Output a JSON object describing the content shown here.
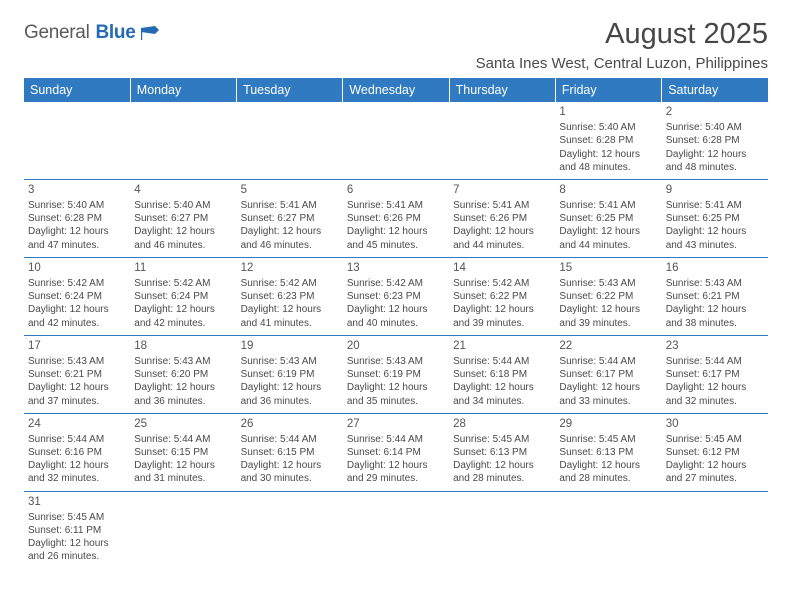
{
  "logo": {
    "part1": "General",
    "part2": "Blue"
  },
  "title": "August 2025",
  "location": "Santa Ines West, Central Luzon, Philippines",
  "colors": {
    "header_bg": "#2f7ac0",
    "header_text": "#ffffff",
    "row_border": "#2f7ac0",
    "body_text": "#4a4a4a",
    "logo_blue": "#246bb3"
  },
  "dayHeaders": [
    "Sunday",
    "Monday",
    "Tuesday",
    "Wednesday",
    "Thursday",
    "Friday",
    "Saturday"
  ],
  "weeks": [
    [
      null,
      null,
      null,
      null,
      null,
      {
        "n": "1",
        "sr": "5:40 AM",
        "ss": "6:28 PM",
        "dl": "12 hours and 48 minutes."
      },
      {
        "n": "2",
        "sr": "5:40 AM",
        "ss": "6:28 PM",
        "dl": "12 hours and 48 minutes."
      }
    ],
    [
      {
        "n": "3",
        "sr": "5:40 AM",
        "ss": "6:28 PM",
        "dl": "12 hours and 47 minutes."
      },
      {
        "n": "4",
        "sr": "5:40 AM",
        "ss": "6:27 PM",
        "dl": "12 hours and 46 minutes."
      },
      {
        "n": "5",
        "sr": "5:41 AM",
        "ss": "6:27 PM",
        "dl": "12 hours and 46 minutes."
      },
      {
        "n": "6",
        "sr": "5:41 AM",
        "ss": "6:26 PM",
        "dl": "12 hours and 45 minutes."
      },
      {
        "n": "7",
        "sr": "5:41 AM",
        "ss": "6:26 PM",
        "dl": "12 hours and 44 minutes."
      },
      {
        "n": "8",
        "sr": "5:41 AM",
        "ss": "6:25 PM",
        "dl": "12 hours and 44 minutes."
      },
      {
        "n": "9",
        "sr": "5:41 AM",
        "ss": "6:25 PM",
        "dl": "12 hours and 43 minutes."
      }
    ],
    [
      {
        "n": "10",
        "sr": "5:42 AM",
        "ss": "6:24 PM",
        "dl": "12 hours and 42 minutes."
      },
      {
        "n": "11",
        "sr": "5:42 AM",
        "ss": "6:24 PM",
        "dl": "12 hours and 42 minutes."
      },
      {
        "n": "12",
        "sr": "5:42 AM",
        "ss": "6:23 PM",
        "dl": "12 hours and 41 minutes."
      },
      {
        "n": "13",
        "sr": "5:42 AM",
        "ss": "6:23 PM",
        "dl": "12 hours and 40 minutes."
      },
      {
        "n": "14",
        "sr": "5:42 AM",
        "ss": "6:22 PM",
        "dl": "12 hours and 39 minutes."
      },
      {
        "n": "15",
        "sr": "5:43 AM",
        "ss": "6:22 PM",
        "dl": "12 hours and 39 minutes."
      },
      {
        "n": "16",
        "sr": "5:43 AM",
        "ss": "6:21 PM",
        "dl": "12 hours and 38 minutes."
      }
    ],
    [
      {
        "n": "17",
        "sr": "5:43 AM",
        "ss": "6:21 PM",
        "dl": "12 hours and 37 minutes."
      },
      {
        "n": "18",
        "sr": "5:43 AM",
        "ss": "6:20 PM",
        "dl": "12 hours and 36 minutes."
      },
      {
        "n": "19",
        "sr": "5:43 AM",
        "ss": "6:19 PM",
        "dl": "12 hours and 36 minutes."
      },
      {
        "n": "20",
        "sr": "5:43 AM",
        "ss": "6:19 PM",
        "dl": "12 hours and 35 minutes."
      },
      {
        "n": "21",
        "sr": "5:44 AM",
        "ss": "6:18 PM",
        "dl": "12 hours and 34 minutes."
      },
      {
        "n": "22",
        "sr": "5:44 AM",
        "ss": "6:17 PM",
        "dl": "12 hours and 33 minutes."
      },
      {
        "n": "23",
        "sr": "5:44 AM",
        "ss": "6:17 PM",
        "dl": "12 hours and 32 minutes."
      }
    ],
    [
      {
        "n": "24",
        "sr": "5:44 AM",
        "ss": "6:16 PM",
        "dl": "12 hours and 32 minutes."
      },
      {
        "n": "25",
        "sr": "5:44 AM",
        "ss": "6:15 PM",
        "dl": "12 hours and 31 minutes."
      },
      {
        "n": "26",
        "sr": "5:44 AM",
        "ss": "6:15 PM",
        "dl": "12 hours and 30 minutes."
      },
      {
        "n": "27",
        "sr": "5:44 AM",
        "ss": "6:14 PM",
        "dl": "12 hours and 29 minutes."
      },
      {
        "n": "28",
        "sr": "5:45 AM",
        "ss": "6:13 PM",
        "dl": "12 hours and 28 minutes."
      },
      {
        "n": "29",
        "sr": "5:45 AM",
        "ss": "6:13 PM",
        "dl": "12 hours and 28 minutes."
      },
      {
        "n": "30",
        "sr": "5:45 AM",
        "ss": "6:12 PM",
        "dl": "12 hours and 27 minutes."
      }
    ],
    [
      {
        "n": "31",
        "sr": "5:45 AM",
        "ss": "6:11 PM",
        "dl": "12 hours and 26 minutes."
      },
      null,
      null,
      null,
      null,
      null,
      null
    ]
  ],
  "labels": {
    "sunrise": "Sunrise: ",
    "sunset": "Sunset: ",
    "daylight": "Daylight: "
  }
}
